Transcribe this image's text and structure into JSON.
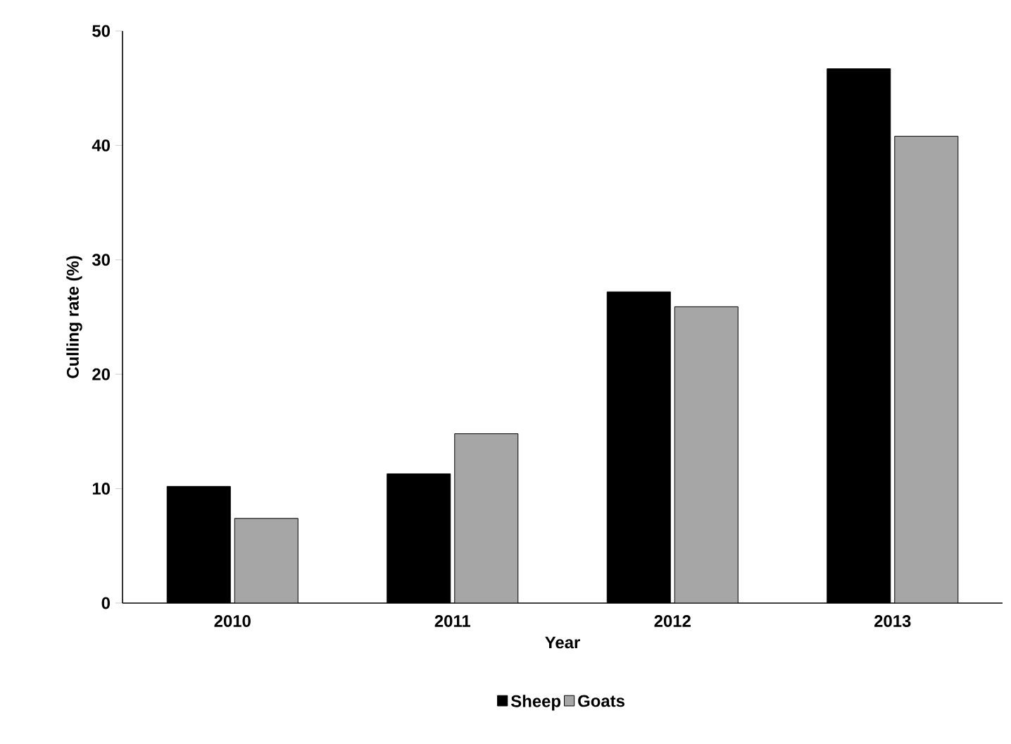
{
  "chart_data": {
    "type": "bar",
    "xlabel": "Year",
    "ylabel": "Culling rate (%)",
    "categories": [
      "2010",
      "2011",
      "2012",
      "2013"
    ],
    "series": [
      {
        "name": "Sheep",
        "color": "#000000",
        "values": [
          10.2,
          11.3,
          27.2,
          46.7
        ]
      },
      {
        "name": "Goats",
        "color": "#a6a6a6",
        "values": [
          7.4,
          14.8,
          25.9,
          40.8
        ]
      }
    ],
    "ylim": [
      0,
      50
    ],
    "yticks": [
      0,
      10,
      20,
      30,
      40,
      50
    ],
    "grid": false,
    "legend": "bottom"
  }
}
